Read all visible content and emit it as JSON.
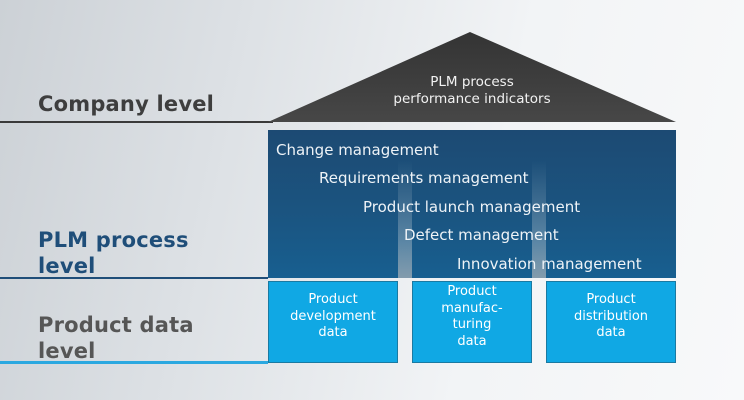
{
  "roof": {
    "line1": "PLM process",
    "line2": "performance indicators"
  },
  "levels": [
    {
      "id": "company",
      "label": "Company level"
    },
    {
      "id": "plm-process",
      "label": "PLM process level"
    },
    {
      "id": "product-data",
      "label": "Product data level"
    }
  ],
  "processes": [
    "Change management",
    "Requirements management",
    "Product launch management",
    "Defect management",
    "Innovation management"
  ],
  "data_boxes": [
    {
      "lines": [
        "Product",
        "development",
        "data"
      ]
    },
    {
      "lines": [
        "Product",
        "manufac-",
        "turing",
        "data"
      ]
    },
    {
      "lines": [
        "Product",
        "distribution",
        "data"
      ]
    }
  ],
  "colors": {
    "roof_gray": "#3e3e3e",
    "plm_box_blue_top": "#1c4a73",
    "plm_box_blue_bottom": "#175f90",
    "data_box_cyan": "#10a8e4",
    "company_rule": "#3a3a3a",
    "plm_rule": "#1f4e79",
    "data_rule": "#2ba8e0",
    "company_label_text": "#3e3e3e",
    "plm_label_text": "#1f4e79",
    "data_label_text": "#565656"
  }
}
